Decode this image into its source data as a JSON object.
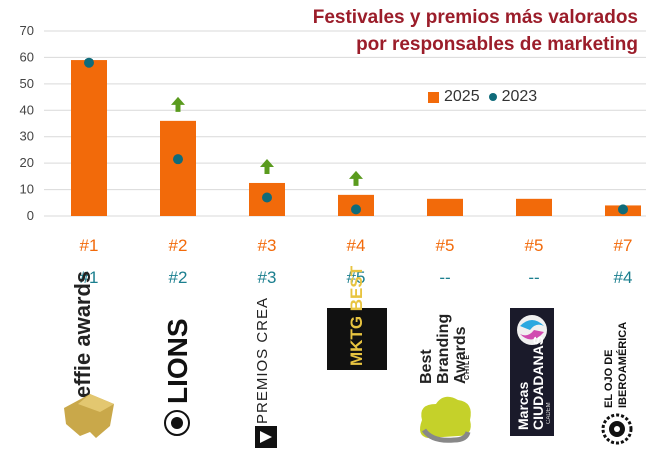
{
  "chart_data": {
    "type": "bar",
    "title": "Festivales y premios más valorados por responsables de marketing",
    "title_lines": [
      "Festivales y premios más valorados",
      "por responsables de marketing"
    ],
    "categories": [
      "effie awards",
      "LIONS",
      "PREMIOS CREA",
      "MKTG BEST",
      "Best Branding Awards Chile",
      "Marcas Ciudadanas CADEM",
      "EL OJO DE IBEROAMÉRICA"
    ],
    "series": [
      {
        "name": "2025",
        "type": "bar",
        "color": "#f26a0a",
        "values": [
          59,
          36,
          12.5,
          8,
          6.5,
          6.5,
          4
        ]
      },
      {
        "name": "2023",
        "type": "dot",
        "color": "#0f6b7a",
        "values": [
          58,
          21.5,
          7,
          2.5,
          null,
          null,
          2.5
        ]
      }
    ],
    "increase_arrows": [
      false,
      true,
      true,
      true,
      false,
      false,
      false
    ],
    "ylim": [
      0,
      70
    ],
    "yticks": [
      "0",
      "10",
      "20",
      "30",
      "40",
      "50",
      "60",
      "70"
    ],
    "grid": true,
    "legend_position": "top-right",
    "ranks_2025": [
      "#1",
      "#2",
      "#3",
      "#4",
      "#5",
      "#5",
      "#7"
    ],
    "ranks_2023": [
      "#1",
      "#2",
      "#3",
      "#5",
      "--",
      "--",
      "#4"
    ]
  },
  "logos": {
    "effie": "effie awards",
    "lions": "LIONS",
    "crea": "PREMIOS CREA",
    "mktg": "MKTG BEST",
    "branding": "Best Branding Awards",
    "branding_sub": "CHILE",
    "marcas": "Marcas CIUDADANAS",
    "marcas_sub": "CADEM",
    "ojo": "EL OJO DE IBEROAMÉRICA"
  },
  "colors": {
    "bar_2025": "#f26a0a",
    "dot_2023": "#0f6b7a",
    "arrow": "#5a9b1e",
    "title": "#9b1d2a"
  }
}
